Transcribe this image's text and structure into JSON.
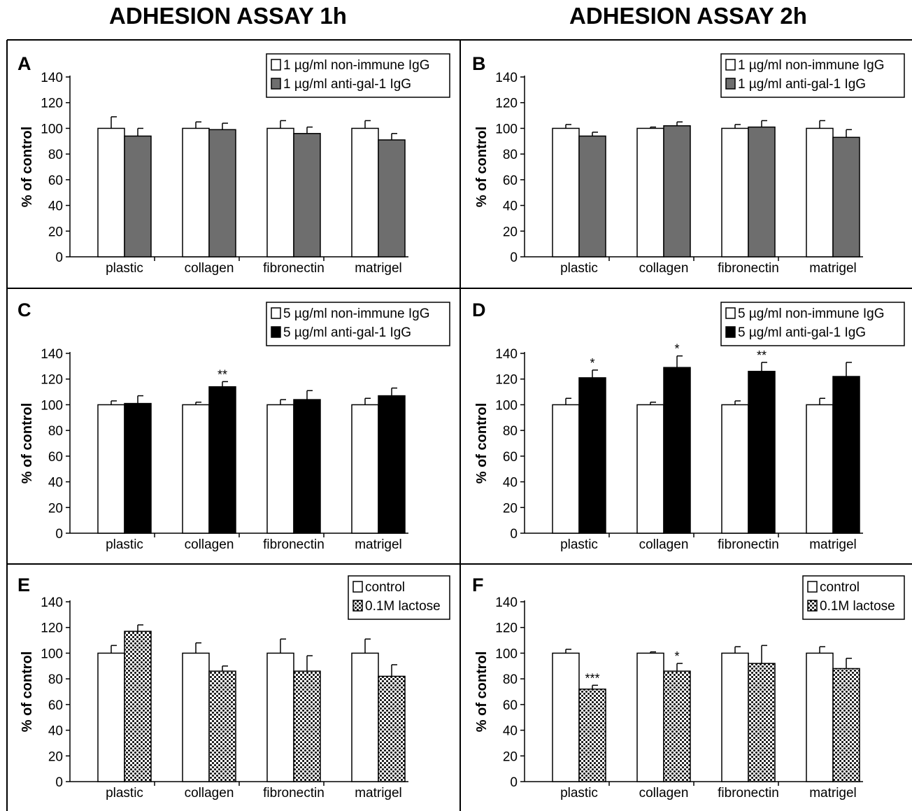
{
  "titles": {
    "left": "ADHESION ASSAY 1h",
    "right": "ADHESION ASSAY 2h"
  },
  "colors": {
    "white_bar": "#ffffff",
    "gray_bar": "#6e6e6e",
    "black_bar": "#000000",
    "border": "#000000"
  },
  "chart_data": [
    {
      "panel": "A",
      "type": "bar",
      "categories": [
        "plastic",
        "collagen",
        "fibronectin",
        "matrigel"
      ],
      "ylabel": "% of control",
      "ylim": [
        0,
        140
      ],
      "yticks": [
        0,
        20,
        40,
        60,
        80,
        100,
        120,
        140
      ],
      "series": [
        {
          "name": "1 µg/ml non-immune IgG",
          "style": "white",
          "values": [
            100,
            100,
            100,
            100
          ],
          "errors": [
            9,
            5,
            6,
            6
          ]
        },
        {
          "name": "1 µg/ml anti-gal-1 IgG",
          "style": "gray",
          "values": [
            94,
            99,
            96,
            91
          ],
          "errors": [
            6,
            5,
            5,
            5
          ]
        }
      ],
      "annotations": [
        [
          "",
          "",
          "",
          ""
        ],
        [
          "",
          "",
          "",
          ""
        ]
      ]
    },
    {
      "panel": "B",
      "type": "bar",
      "categories": [
        "plastic",
        "collagen",
        "fibronectin",
        "matrigel"
      ],
      "ylabel": "% of control",
      "ylim": [
        0,
        140
      ],
      "yticks": [
        0,
        20,
        40,
        60,
        80,
        100,
        120,
        140
      ],
      "series": [
        {
          "name": "1 µg/ml non-immune IgG",
          "style": "white",
          "values": [
            100,
            100,
            100,
            100
          ],
          "errors": [
            3,
            1,
            3,
            6
          ]
        },
        {
          "name": "1 µg/ml anti-gal-1 IgG",
          "style": "gray",
          "values": [
            94,
            102,
            101,
            93
          ],
          "errors": [
            3,
            3,
            5,
            6
          ]
        }
      ],
      "annotations": [
        [
          "",
          "",
          "",
          ""
        ],
        [
          "",
          "",
          "",
          ""
        ]
      ]
    },
    {
      "panel": "C",
      "type": "bar",
      "categories": [
        "plastic",
        "collagen",
        "fibronectin",
        "matrigel"
      ],
      "ylabel": "% of control",
      "ylim": [
        0,
        140
      ],
      "yticks": [
        0,
        20,
        40,
        60,
        80,
        100,
        120,
        140
      ],
      "series": [
        {
          "name": "5 µg/ml non-immune IgG",
          "style": "white",
          "values": [
            100,
            100,
            100,
            100
          ],
          "errors": [
            3,
            2,
            4,
            5
          ]
        },
        {
          "name": "5 µg/ml anti-gal-1 IgG",
          "style": "black",
          "values": [
            101,
            114,
            104,
            107
          ],
          "errors": [
            6,
            4,
            7,
            6
          ]
        }
      ],
      "annotations": [
        [
          "",
          "",
          "",
          ""
        ],
        [
          "",
          "**",
          "",
          ""
        ]
      ]
    },
    {
      "panel": "D",
      "type": "bar",
      "categories": [
        "plastic",
        "collagen",
        "fibronectin",
        "matrigel"
      ],
      "ylabel": "% of control",
      "ylim": [
        0,
        140
      ],
      "yticks": [
        0,
        20,
        40,
        60,
        80,
        100,
        120,
        140
      ],
      "series": [
        {
          "name": "5 µg/ml non-immune IgG",
          "style": "white",
          "values": [
            100,
            100,
            100,
            100
          ],
          "errors": [
            5,
            2,
            3,
            5
          ]
        },
        {
          "name": "5 µg/ml anti-gal-1 IgG",
          "style": "black",
          "values": [
            121,
            129,
            126,
            122
          ],
          "errors": [
            6,
            9,
            7,
            11
          ]
        }
      ],
      "annotations": [
        [
          "",
          "",
          "",
          ""
        ],
        [
          "*",
          "*",
          "**",
          ""
        ]
      ]
    },
    {
      "panel": "E",
      "type": "bar",
      "categories": [
        "plastic",
        "collagen",
        "fibronectin",
        "matrigel"
      ],
      "ylabel": "% of control",
      "ylim": [
        0,
        140
      ],
      "yticks": [
        0,
        20,
        40,
        60,
        80,
        100,
        120,
        140
      ],
      "series": [
        {
          "name": "control",
          "style": "white",
          "values": [
            100,
            100,
            100,
            100
          ],
          "errors": [
            6,
            8,
            11,
            11
          ]
        },
        {
          "name": "0.1M lactose",
          "style": "dots",
          "values": [
            117,
            86,
            86,
            82
          ],
          "errors": [
            5,
            4,
            12,
            9
          ]
        }
      ],
      "annotations": [
        [
          "",
          "",
          "",
          ""
        ],
        [
          "",
          "",
          "",
          ""
        ]
      ]
    },
    {
      "panel": "F",
      "type": "bar",
      "categories": [
        "plastic",
        "collagen",
        "fibronectin",
        "matrigel"
      ],
      "ylabel": "% of control",
      "ylim": [
        0,
        140
      ],
      "yticks": [
        0,
        20,
        40,
        60,
        80,
        100,
        120,
        140
      ],
      "series": [
        {
          "name": "control",
          "style": "white",
          "values": [
            100,
            100,
            100,
            100
          ],
          "errors": [
            3,
            1,
            5,
            5
          ]
        },
        {
          "name": "0.1M lactose",
          "style": "dots",
          "values": [
            72,
            86,
            92,
            88
          ],
          "errors": [
            3,
            6,
            14,
            8
          ]
        }
      ],
      "annotations": [
        [
          "",
          "",
          "",
          ""
        ],
        [
          "***",
          "*",
          "",
          ""
        ]
      ]
    }
  ]
}
